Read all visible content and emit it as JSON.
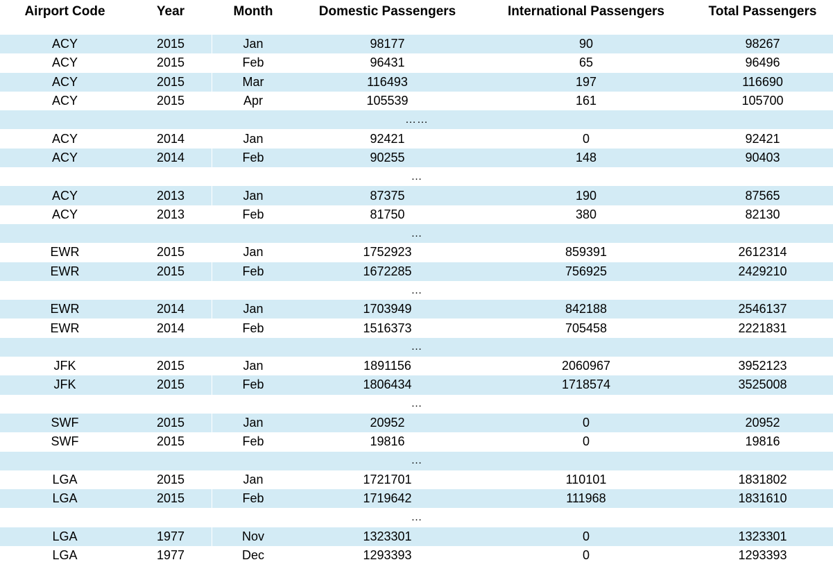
{
  "columns": [
    "Airport Code",
    "Year",
    "Month",
    "Domestic Passengers",
    "International Passengers",
    "Total Passengers"
  ],
  "rows": [
    {
      "type": "data",
      "cells": [
        "ACY",
        "2015",
        "Jan",
        "98177",
        "90",
        "98267"
      ]
    },
    {
      "type": "data",
      "cells": [
        "ACY",
        "2015",
        "Feb",
        "96431",
        "65",
        "96496"
      ]
    },
    {
      "type": "data",
      "cells": [
        "ACY",
        "2015",
        "Mar",
        "116493",
        "197",
        "116690"
      ]
    },
    {
      "type": "data",
      "cells": [
        "ACY",
        "2015",
        "Apr",
        "105539",
        "161",
        "105700"
      ]
    },
    {
      "type": "ellipsis",
      "text": "……"
    },
    {
      "type": "data",
      "cells": [
        "ACY",
        "2014",
        "Jan",
        "92421",
        "0",
        "92421"
      ]
    },
    {
      "type": "data",
      "cells": [
        "ACY",
        "2014",
        "Feb",
        "90255",
        "148",
        "90403"
      ]
    },
    {
      "type": "ellipsis",
      "text": "…"
    },
    {
      "type": "data",
      "cells": [
        "ACY",
        "2013",
        "Jan",
        "87375",
        "190",
        "87565"
      ]
    },
    {
      "type": "data",
      "cells": [
        "ACY",
        "2013",
        "Feb",
        "81750",
        "380",
        "82130"
      ]
    },
    {
      "type": "ellipsis",
      "text": "…"
    },
    {
      "type": "data",
      "cells": [
        "EWR",
        "2015",
        "Jan",
        "1752923",
        "859391",
        "2612314"
      ]
    },
    {
      "type": "data",
      "cells": [
        "EWR",
        "2015",
        "Feb",
        "1672285",
        "756925",
        "2429210"
      ]
    },
    {
      "type": "ellipsis",
      "text": "…"
    },
    {
      "type": "data",
      "cells": [
        "EWR",
        "2014",
        "Jan",
        "1703949",
        "842188",
        "2546137"
      ]
    },
    {
      "type": "data",
      "cells": [
        "EWR",
        "2014",
        "Feb",
        "1516373",
        "705458",
        "2221831"
      ]
    },
    {
      "type": "ellipsis",
      "text": "…"
    },
    {
      "type": "data",
      "cells": [
        "JFK",
        "2015",
        "Jan",
        "1891156",
        "2060967",
        "3952123"
      ]
    },
    {
      "type": "data",
      "cells": [
        "JFK",
        "2015",
        "Feb",
        "1806434",
        "1718574",
        "3525008"
      ]
    },
    {
      "type": "ellipsis",
      "text": "…"
    },
    {
      "type": "data",
      "cells": [
        "SWF",
        "2015",
        "Jan",
        "20952",
        "0",
        "20952"
      ]
    },
    {
      "type": "data",
      "cells": [
        "SWF",
        "2015",
        "Feb",
        "19816",
        "0",
        "19816"
      ]
    },
    {
      "type": "ellipsis",
      "text": "…"
    },
    {
      "type": "data",
      "cells": [
        "LGA",
        "2015",
        "Jan",
        "1721701",
        "110101",
        "1831802"
      ]
    },
    {
      "type": "data",
      "cells": [
        "LGA",
        "2015",
        "Feb",
        "1719642",
        "111968",
        "1831610"
      ]
    },
    {
      "type": "ellipsis",
      "text": "…"
    },
    {
      "type": "data",
      "cells": [
        "LGA",
        "1977",
        "Nov",
        "1323301",
        "0",
        "1323301"
      ]
    },
    {
      "type": "data",
      "cells": [
        "LGA",
        "1977",
        "Dec",
        "1293393",
        "0",
        "1293393"
      ]
    }
  ],
  "colors": {
    "row_shade": "#d3ebf5",
    "text": "#000000",
    "background": "#ffffff"
  }
}
